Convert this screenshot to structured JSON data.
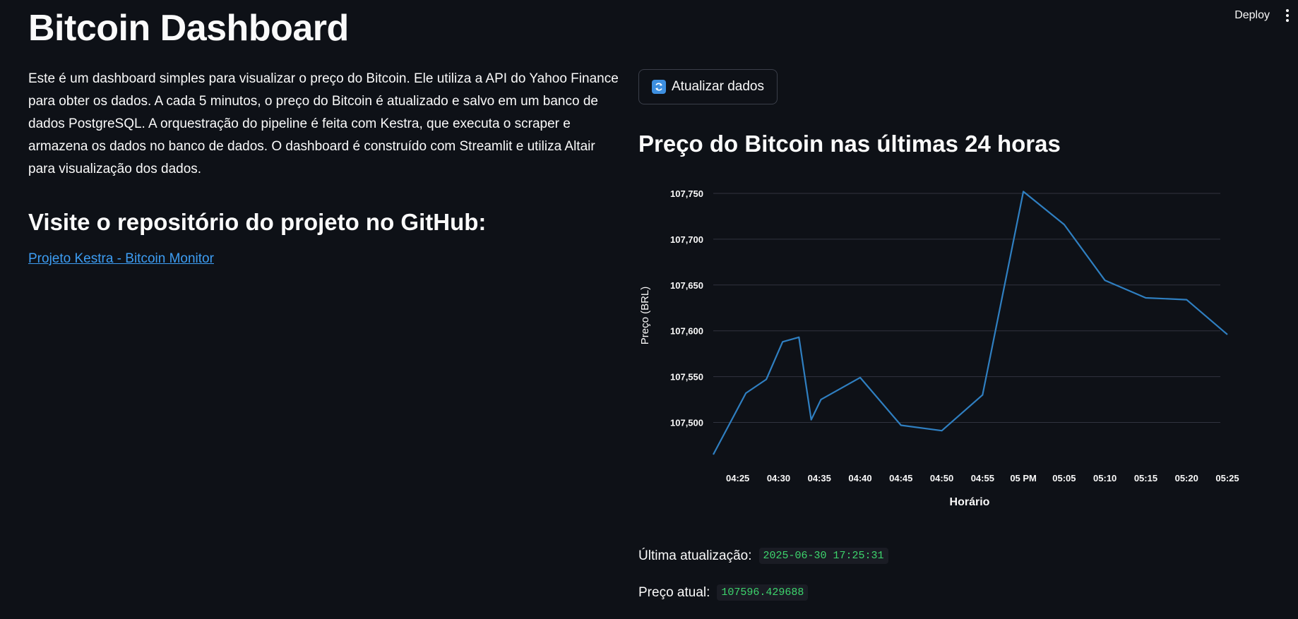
{
  "header": {
    "deploy_label": "Deploy",
    "menu_icon": "vertical-dots-icon"
  },
  "page": {
    "title": "Bitcoin Dashboard",
    "intro": "Este é um dashboard simples para visualizar o preço do Bitcoin. Ele utiliza a API do Yahoo Finance para obter os dados. A cada 5 minutos, o preço do Bitcoin é atualizado e salvo em um banco de dados PostgreSQL. A orquestração do pipeline é feita com Kestra, que executa o scraper e armazena os dados no banco de dados. O dashboard é construído com Streamlit e utiliza Altair para visualização dos dados.",
    "github_heading": "Visite o repositório do projeto no GitHub:",
    "github_link_text": "Projeto Kestra - Bitcoin Monitor"
  },
  "controls": {
    "refresh_label": "Atualizar dados",
    "refresh_icon": "refresh-icon"
  },
  "chart_heading": "Preço do Bitcoin nas últimas 24 horas",
  "chart_data": {
    "type": "line",
    "title": "Preço do Bitcoin nas últimas 24 horas",
    "xlabel": "Horário",
    "ylabel": "Preço (BRL)",
    "x_tick_labels": [
      "04:25",
      "04:30",
      "04:35",
      "04:40",
      "04:45",
      "04:50",
      "04:55",
      "05 PM",
      "05:05",
      "05:10",
      "05:15",
      "05:20",
      "05:25"
    ],
    "y_tick_labels": [
      "107,500",
      "107,550",
      "107,600",
      "107,650",
      "107,700",
      "107,750"
    ],
    "y_ticks": [
      107500,
      107550,
      107600,
      107650,
      107700,
      107750
    ],
    "x_range_minutes": [
      22,
      85
    ],
    "ylim": [
      107465,
      107770
    ],
    "grid": true,
    "color": "#2f7fc1",
    "series": [
      {
        "name": "Preço",
        "x_minutes": [
          22,
          26,
          28.5,
          30.5,
          32.5,
          34,
          35.2,
          40,
          45,
          50,
          55,
          60,
          65,
          70,
          75,
          80,
          85
        ],
        "values": [
          107465,
          107532,
          107547,
          107588,
          107593,
          107503,
          107525,
          107549,
          107497,
          107491,
          107530,
          107752,
          107716,
          107655,
          107636,
          107634,
          107596
        ]
      }
    ]
  },
  "status": {
    "last_update_label": "Última atualização:",
    "last_update_value": "2025-06-30 17:25:31",
    "current_price_label": "Preço atual:",
    "current_price_value": "107596.429688"
  }
}
